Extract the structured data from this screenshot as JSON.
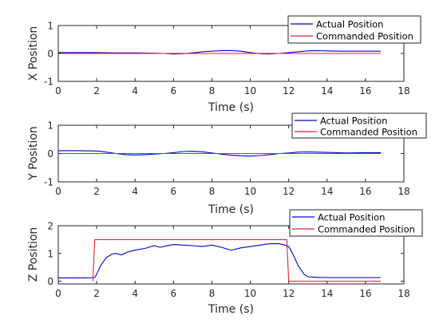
{
  "colors": {
    "actual": "#0000c8",
    "commanded": "#e0262b",
    "axis": "#262626",
    "background": "#ffffff"
  },
  "chart_data": [
    {
      "type": "line",
      "xlabel": "Time (s)",
      "ylabel": "X Position",
      "xlim": [
        0,
        18
      ],
      "ylim": [
        -1,
        1
      ],
      "xticks": [
        0,
        2,
        4,
        6,
        8,
        10,
        12,
        14,
        16,
        18
      ],
      "yticks": [
        -1,
        0,
        1
      ],
      "grid": false,
      "legend_position": "top-right",
      "series": [
        {
          "name": "Actual Position",
          "color": "actual",
          "x": [
            0,
            1,
            2,
            3,
            4,
            5,
            5.5,
            6,
            6.5,
            7,
            7.5,
            8,
            8.5,
            9,
            9.5,
            10,
            10.5,
            11,
            11.5,
            12,
            12.5,
            13,
            13.5,
            14,
            15,
            16,
            16.8
          ],
          "y": [
            0.03,
            0.03,
            0.03,
            0.02,
            0.02,
            0.01,
            0.0,
            -0.02,
            -0.01,
            0.02,
            0.06,
            0.08,
            0.1,
            0.1,
            0.08,
            0.03,
            -0.01,
            -0.02,
            0.0,
            0.03,
            0.06,
            0.09,
            0.1,
            0.09,
            0.08,
            0.08,
            0.08
          ]
        },
        {
          "name": "Commanded Position",
          "color": "commanded",
          "x": [
            0,
            16.8
          ],
          "y": [
            0,
            0
          ]
        }
      ]
    },
    {
      "type": "line",
      "xlabel": "Time (s)",
      "ylabel": "Y Position",
      "xlim": [
        0,
        18
      ],
      "ylim": [
        -1,
        1
      ],
      "xticks": [
        0,
        2,
        4,
        6,
        8,
        10,
        12,
        14,
        16,
        18
      ],
      "yticks": [
        -1,
        0,
        1
      ],
      "grid": false,
      "legend_position": "top-right",
      "series": [
        {
          "name": "Actual Position",
          "color": "actual",
          "x": [
            0,
            1,
            2,
            2.5,
            3,
            3.5,
            4,
            4.5,
            5,
            5.5,
            6,
            6.5,
            7,
            7.5,
            8,
            8.5,
            9,
            9.5,
            10,
            10.5,
            11,
            11.5,
            12,
            12.5,
            13,
            14,
            15,
            16,
            16.8
          ],
          "y": [
            0.1,
            0.1,
            0.09,
            0.05,
            0.0,
            -0.04,
            -0.05,
            -0.04,
            -0.02,
            0.0,
            0.03,
            0.07,
            0.08,
            0.06,
            0.02,
            -0.02,
            -0.06,
            -0.08,
            -0.09,
            -0.07,
            -0.04,
            0.0,
            0.02,
            0.05,
            0.06,
            0.04,
            0.02,
            0.03,
            0.03
          ]
        },
        {
          "name": "Commanded Position",
          "color": "commanded",
          "x": [
            0,
            16.8
          ],
          "y": [
            0,
            0
          ]
        }
      ]
    },
    {
      "type": "line",
      "xlabel": "Time (s)",
      "ylabel": "Z Position",
      "xlim": [
        0,
        18
      ],
      "ylim": [
        -0.1,
        2
      ],
      "xticks": [
        0,
        2,
        4,
        6,
        8,
        10,
        12,
        14,
        16,
        18
      ],
      "yticks": [
        0,
        1,
        2
      ],
      "grid": false,
      "legend_position": "top-right",
      "series": [
        {
          "name": "Actual Position",
          "color": "actual",
          "x": [
            0,
            1.5,
            1.9,
            2.0,
            2.2,
            2.5,
            2.8,
            3.0,
            3.3,
            3.6,
            4.0,
            4.5,
            5.0,
            5.3,
            5.6,
            6.0,
            6.5,
            7.0,
            7.5,
            8.0,
            8.5,
            9.0,
            9.5,
            10.0,
            10.5,
            11.0,
            11.5,
            11.8,
            12.0,
            12.2,
            12.5,
            12.8,
            13.0,
            13.5,
            14,
            15,
            16,
            16.8
          ],
          "y": [
            0.12,
            0.12,
            0.13,
            0.25,
            0.55,
            0.85,
            0.98,
            1.0,
            0.95,
            1.05,
            1.12,
            1.18,
            1.28,
            1.22,
            1.27,
            1.32,
            1.3,
            1.28,
            1.25,
            1.3,
            1.22,
            1.12,
            1.2,
            1.25,
            1.3,
            1.35,
            1.35,
            1.3,
            1.25,
            1.0,
            0.55,
            0.25,
            0.16,
            0.14,
            0.13,
            0.13,
            0.13,
            0.13
          ]
        },
        {
          "name": "Commanded Position",
          "color": "commanded",
          "x": [
            1.8,
            1.9,
            11.9,
            12.0,
            16.8
          ],
          "y": [
            0,
            1.5,
            1.5,
            0,
            0
          ]
        }
      ]
    }
  ]
}
